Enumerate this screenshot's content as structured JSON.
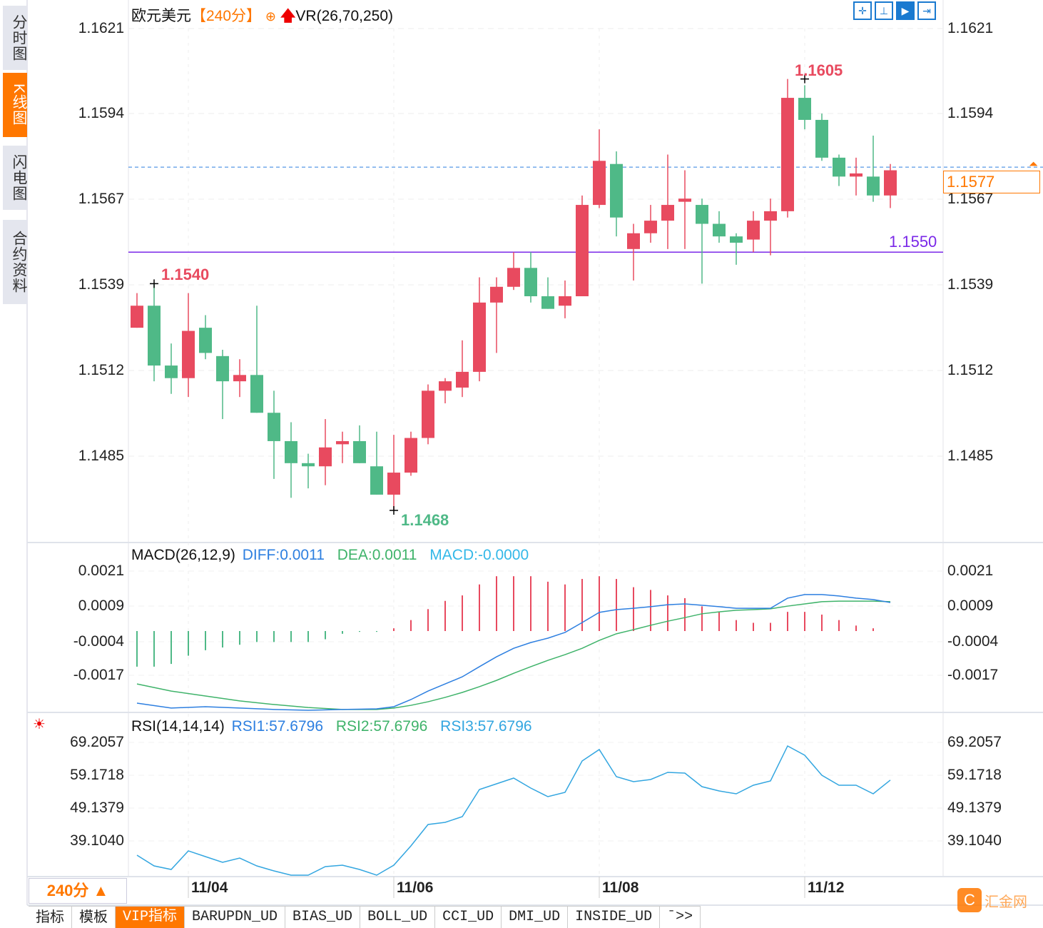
{
  "sidebar": {
    "tabs": [
      {
        "label": "分时图"
      },
      {
        "label": "K线图"
      },
      {
        "label": "闪电图"
      },
      {
        "label": "合约资料"
      }
    ],
    "active": 1
  },
  "header": {
    "symbol": "欧元美元",
    "period": "【240分】",
    "indicator": "VR(26,70,250)",
    "add_icon": "circle-plus-icon",
    "arrow_icon": "red-up-arrow-icon"
  },
  "toolbar": {
    "icons": [
      "crosshair-icon",
      "axis-scale-icon",
      "play-axis-icon",
      "scroll-right-icon"
    ]
  },
  "colors": {
    "up": "#e84a5f",
    "down": "#4fb987",
    "diff": "#2d7fe0",
    "dea": "#3fb36a",
    "rsi": "#33a6e0",
    "support": "#7a28e8",
    "current": "#2d7fe0",
    "accent": "#ff7700"
  },
  "price_axis": {
    "ticks": [
      "1.1621",
      "1.1594",
      "1.1567",
      "1.1539",
      "1.1512",
      "1.1485"
    ]
  },
  "annotations": {
    "high": "1.1605",
    "low": "1.1468",
    "left_high": "1.1540",
    "support": "1.1550",
    "current": "1.1577"
  },
  "chart_data": [
    {
      "type": "candlestick",
      "title": "欧元美元 240分",
      "ylim": [
        1.1463,
        1.1621
      ],
      "ohlc": [
        [
          1.1526,
          1.1537,
          1.1526,
          1.1533
        ],
        [
          1.1533,
          1.154,
          1.1509,
          1.1514
        ],
        [
          1.1514,
          1.1521,
          1.1505,
          1.151
        ],
        [
          1.151,
          1.1537,
          1.1504,
          1.1525
        ],
        [
          1.1526,
          1.153,
          1.1516,
          1.1518
        ],
        [
          1.1517,
          1.1519,
          1.1497,
          1.1509
        ],
        [
          1.1509,
          1.1516,
          1.1504,
          1.1511
        ],
        [
          1.1511,
          1.1533,
          1.1499,
          1.1499
        ],
        [
          1.1499,
          1.1506,
          1.1478,
          1.149
        ],
        [
          1.149,
          1.1496,
          1.1472,
          1.1483
        ],
        [
          1.1483,
          1.1486,
          1.1475,
          1.1482
        ],
        [
          1.1482,
          1.1497,
          1.1476,
          1.1488
        ],
        [
          1.1489,
          1.1493,
          1.1483,
          1.149
        ],
        [
          1.149,
          1.1495,
          1.1483,
          1.1483
        ],
        [
          1.1482,
          1.1493,
          1.1473,
          1.1473
        ],
        [
          1.1473,
          1.1492,
          1.1468,
          1.148
        ],
        [
          1.148,
          1.1493,
          1.1479,
          1.1491
        ],
        [
          1.1491,
          1.1508,
          1.1489,
          1.1506
        ],
        [
          1.1506,
          1.151,
          1.1502,
          1.1509
        ],
        [
          1.1507,
          1.1522,
          1.1504,
          1.1512
        ],
        [
          1.1512,
          1.1542,
          1.1509,
          1.1534
        ],
        [
          1.1534,
          1.1542,
          1.1518,
          1.1539
        ],
        [
          1.1539,
          1.155,
          1.1538,
          1.1545
        ],
        [
          1.1545,
          1.155,
          1.1534,
          1.1536
        ],
        [
          1.1536,
          1.1542,
          1.1532,
          1.1532
        ],
        [
          1.1533,
          1.1541,
          1.1529,
          1.1536
        ],
        [
          1.1536,
          1.1568,
          1.1536,
          1.1565
        ],
        [
          1.1565,
          1.1589,
          1.1564,
          1.1579
        ],
        [
          1.1578,
          1.1582,
          1.1555,
          1.1561
        ],
        [
          1.1551,
          1.1559,
          1.1541,
          1.1556
        ],
        [
          1.1556,
          1.1565,
          1.1553,
          1.156
        ],
        [
          1.156,
          1.1581,
          1.1551,
          1.1565
        ],
        [
          1.1566,
          1.1576,
          1.1551,
          1.1567
        ],
        [
          1.1565,
          1.1567,
          1.154,
          1.1559
        ],
        [
          1.1559,
          1.1563,
          1.1553,
          1.1555
        ],
        [
          1.1555,
          1.1556,
          1.1546,
          1.1553
        ],
        [
          1.1554,
          1.1563,
          1.155,
          1.156
        ],
        [
          1.156,
          1.1567,
          1.1549,
          1.1563
        ],
        [
          1.1563,
          1.1605,
          1.1561,
          1.1599
        ],
        [
          1.1599,
          1.1603,
          1.1589,
          1.1592
        ],
        [
          1.1592,
          1.1594,
          1.1579,
          1.158
        ],
        [
          1.158,
          1.1581,
          1.1571,
          1.1574
        ],
        [
          1.1574,
          1.158,
          1.1568,
          1.1575
        ],
        [
          1.1574,
          1.1587,
          1.1566,
          1.1568
        ],
        [
          1.1568,
          1.1578,
          1.1564,
          1.1576
        ]
      ],
      "current_price": 1.1577,
      "support_line": 1.155,
      "x_labels": [
        {
          "index": 3,
          "label": "11/04"
        },
        {
          "index": 15,
          "label": "11/06"
        },
        {
          "index": 27,
          "label": "11/08"
        },
        {
          "index": 39,
          "label": "11/12"
        }
      ]
    },
    {
      "type": "macd",
      "title": "MACD(26,12,9)",
      "legend": {
        "diff": "DIFF:0.0011",
        "dea": "DEA:0.0011",
        "macd": "MACD:-0.0000"
      },
      "ticks": [
        "0.0021",
        "0.0009",
        "-0.0004",
        "-0.0017"
      ],
      "hist": [
        -0.0013,
        -0.0013,
        -0.0012,
        -0.0009,
        -0.0007,
        -0.0006,
        -0.0005,
        -0.0004,
        -0.0004,
        -0.0004,
        -0.0004,
        -0.0003,
        -0.0001,
        -3e-05,
        -3e-05,
        0.0001,
        0.0004,
        0.0008,
        0.0011,
        0.0013,
        0.0017,
        0.002,
        0.002,
        0.002,
        0.0018,
        0.0017,
        0.0019,
        0.002,
        0.0019,
        0.0016,
        0.0015,
        0.0013,
        0.0012,
        0.0009,
        0.0007,
        0.0004,
        0.0003,
        0.0003,
        0.0007,
        0.0007,
        0.0006,
        0.0004,
        0.0002,
        0.0001,
        0.0
      ],
      "diff": [
        [
          0,
          -0.00263
        ],
        [
          2,
          -0.00281
        ],
        [
          4,
          -0.00276
        ],
        [
          6,
          -0.00281
        ],
        [
          8,
          -0.00286
        ],
        [
          10,
          -0.00289
        ],
        [
          12,
          -0.00286
        ],
        [
          14,
          -0.00284
        ],
        [
          15,
          -0.00276
        ],
        [
          16,
          -0.0025
        ],
        [
          17,
          -0.00219
        ],
        [
          18,
          -0.00193
        ],
        [
          19,
          -0.00167
        ],
        [
          20,
          -0.0013
        ],
        [
          21,
          -0.00094
        ],
        [
          22,
          -0.00063
        ],
        [
          23,
          -0.00042
        ],
        [
          24,
          -0.00026
        ],
        [
          25,
          -5e-05
        ],
        [
          26,
          0.00031
        ],
        [
          27,
          0.00068
        ],
        [
          28,
          0.00078
        ],
        [
          29,
          0.00083
        ],
        [
          30,
          0.00089
        ],
        [
          31,
          0.00096
        ],
        [
          32,
          0.00099
        ],
        [
          33,
          0.00094
        ],
        [
          34,
          0.00089
        ],
        [
          35,
          0.00083
        ],
        [
          36,
          0.00083
        ],
        [
          37,
          0.00083
        ],
        [
          38,
          0.0012
        ],
        [
          39,
          0.00133
        ],
        [
          40,
          0.00133
        ],
        [
          41,
          0.00128
        ],
        [
          42,
          0.0012
        ],
        [
          43,
          0.00115
        ],
        [
          44,
          0.00104
        ]
      ],
      "dea": [
        [
          0,
          -0.00193
        ],
        [
          2,
          -0.00219
        ],
        [
          4,
          -0.00237
        ],
        [
          6,
          -0.00255
        ],
        [
          8,
          -0.00268
        ],
        [
          10,
          -0.00279
        ],
        [
          12,
          -0.00286
        ],
        [
          14,
          -0.00286
        ],
        [
          15,
          -0.00281
        ],
        [
          16,
          -0.00271
        ],
        [
          17,
          -0.00258
        ],
        [
          18,
          -0.00242
        ],
        [
          19,
          -0.00224
        ],
        [
          20,
          -0.00203
        ],
        [
          21,
          -0.0018
        ],
        [
          22,
          -0.00154
        ],
        [
          23,
          -0.0013
        ],
        [
          24,
          -0.00107
        ],
        [
          25,
          -0.00086
        ],
        [
          26,
          -0.00063
        ],
        [
          27,
          -0.00034
        ],
        [
          28,
          -0.0001
        ],
        [
          29,
          5e-05
        ],
        [
          30,
          0.00021
        ],
        [
          31,
          0.00036
        ],
        [
          32,
          0.00049
        ],
        [
          33,
          0.00063
        ],
        [
          34,
          0.0007
        ],
        [
          35,
          0.00076
        ],
        [
          36,
          0.00078
        ],
        [
          37,
          0.00081
        ],
        [
          38,
          0.00091
        ],
        [
          39,
          0.00099
        ],
        [
          40,
          0.00107
        ],
        [
          41,
          0.00109
        ],
        [
          42,
          0.00109
        ],
        [
          43,
          0.00109
        ],
        [
          44,
          0.00107
        ]
      ]
    },
    {
      "type": "line",
      "title": "RSI(14,14,14)",
      "legend": {
        "rsi1": "RSI1:57.6796",
        "rsi2": "RSI2:57.6796",
        "rsi3": "RSI3:57.6796"
      },
      "ticks": [
        "69.2057",
        "59.1718",
        "49.1379",
        "39.1040"
      ],
      "values": [
        34.75,
        31.47,
        30.38,
        36.06,
        34.31,
        32.57,
        33.87,
        31.47,
        29.95,
        28.64,
        28.64,
        31.26,
        31.69,
        30.38,
        28.64,
        31.69,
        37.58,
        44.12,
        44.78,
        46.52,
        54.81,
        56.56,
        58.3,
        55.25,
        52.63,
        53.94,
        63.54,
        67.03,
        58.74,
        57.21,
        57.87,
        60.05,
        59.83,
        55.68,
        54.37,
        53.5,
        56.12,
        57.43,
        68.12,
        65.28,
        59.17,
        56.12,
        56.12,
        53.5,
        57.68
      ]
    }
  ],
  "bottom": {
    "period": "240分 ▲",
    "tabs": [
      "指标",
      "模板",
      "VIP指标",
      "BARUPDN_UD",
      "BIAS_UD",
      "BOLL_UD",
      "CCI_UD",
      "DMI_UD",
      "INSIDE_UD",
      "ˉ>>"
    ],
    "logo": "汇金网"
  }
}
